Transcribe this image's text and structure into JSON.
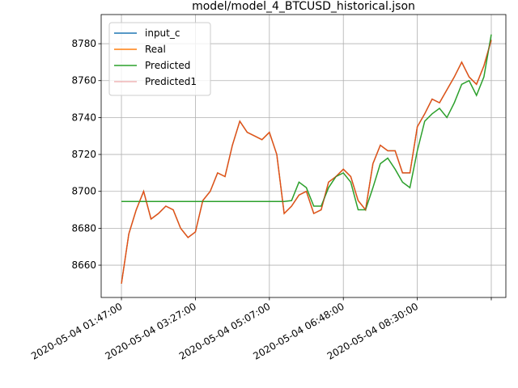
{
  "chart_data": {
    "type": "line",
    "title": "model/model_4_BTCUSD_historical.json",
    "x": [
      0,
      10,
      20,
      30,
      40,
      50,
      60,
      70,
      80,
      90,
      100,
      110,
      120,
      130,
      140,
      150,
      160,
      170,
      180,
      190,
      200,
      210,
      220,
      230,
      240,
      250,
      260,
      270,
      280,
      290,
      300,
      310,
      320,
      330,
      340,
      350,
      360,
      370,
      380,
      390,
      400,
      410,
      420,
      430,
      440,
      450,
      460,
      470,
      480,
      490,
      500
    ],
    "series": [
      {
        "name": "input_c",
        "color": "#1f77b4",
        "width": 1.5,
        "values": [
          8650,
          8677,
          8690,
          8700,
          8685,
          8688,
          8692,
          8690,
          8680,
          8675,
          8678,
          8695,
          8700,
          8710,
          8708,
          8725,
          8738,
          8732,
          8730,
          8728,
          8732,
          8720,
          8688,
          8692,
          8698,
          8700,
          8688,
          8690,
          8705,
          8708,
          8712,
          8708,
          8695,
          8690,
          8715,
          8725,
          8722,
          8722,
          8710,
          8710,
          8735,
          8742,
          8750,
          8748,
          8755,
          8762,
          8770,
          8762,
          8758,
          8768,
          8782
        ]
      },
      {
        "name": "Real",
        "color": "#ff7f0e",
        "width": 1.5,
        "values": [
          8650,
          8677,
          8690,
          8700,
          8685,
          8688,
          8692,
          8690,
          8680,
          8675,
          8678,
          8695,
          8700,
          8710,
          8708,
          8725,
          8738,
          8732,
          8730,
          8728,
          8732,
          8720,
          8688,
          8692,
          8698,
          8700,
          8688,
          8690,
          8705,
          8708,
          8712,
          8708,
          8695,
          8690,
          8715,
          8725,
          8722,
          8722,
          8710,
          8710,
          8735,
          8742,
          8750,
          8748,
          8755,
          8762,
          8770,
          8762,
          8758,
          8768,
          8782
        ]
      },
      {
        "name": "Predicted",
        "color": "#2ca02c",
        "width": 1.5,
        "values": [
          8694.5,
          8694.5,
          8694.5,
          8694.5,
          8694.5,
          8694.5,
          8694.5,
          8694.5,
          8694.5,
          8694.5,
          8694.5,
          8694.5,
          8694.5,
          8694.5,
          8694.5,
          8694.5,
          8694.5,
          8694.5,
          8694.5,
          8694.5,
          8694.5,
          8694.5,
          8694.5,
          8695,
          8705,
          8702,
          8692,
          8692,
          8702,
          8708,
          8710,
          8705,
          8690,
          8690,
          8702,
          8715,
          8718,
          8712,
          8705,
          8702,
          8722,
          8738,
          8742,
          8745,
          8740,
          8748,
          8758,
          8760,
          8752,
          8762,
          8785
        ]
      },
      {
        "name": "Predicted1",
        "color": "#d62728",
        "width": 0.6,
        "values": [
          8650,
          8677,
          8690,
          8700,
          8685,
          8688,
          8692,
          8690,
          8680,
          8675,
          8678,
          8695,
          8700,
          8710,
          8708,
          8725,
          8738,
          8732,
          8730,
          8728,
          8732,
          8720,
          8688,
          8692,
          8698,
          8700,
          8688,
          8690,
          8705,
          8708,
          8712,
          8708,
          8695,
          8690,
          8715,
          8725,
          8722,
          8722,
          8710,
          8710,
          8735,
          8742,
          8750,
          8748,
          8755,
          8762,
          8770,
          8762,
          8758,
          8768,
          8782
        ]
      }
    ],
    "xlim": [
      -27.4,
      519.7
    ],
    "ylim": [
      8642.5,
      8795.8
    ],
    "xticks": [
      {
        "value": 0,
        "label": "2020-05-04 01:47:00"
      },
      {
        "value": 100,
        "label": "2020-05-04 03:27:00"
      },
      {
        "value": 200,
        "label": "2020-05-04 05:07:00"
      },
      {
        "value": 300,
        "label": "2020-05-04 06:48:00"
      },
      {
        "value": 400,
        "label": "2020-05-04 08:30:00"
      },
      {
        "value": 500,
        "label": null
      }
    ],
    "yticks": [
      8660,
      8680,
      8700,
      8720,
      8740,
      8760,
      8780
    ],
    "grid": true,
    "legend": "upper-left"
  }
}
